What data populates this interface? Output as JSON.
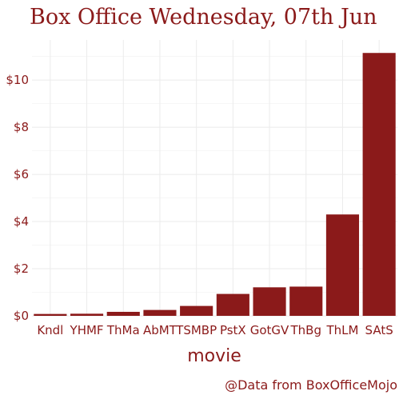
{
  "colors": {
    "bar": "#8b1a1a",
    "text": "#8b1a1a",
    "grid": "#ebebeb"
  },
  "chart_data": {
    "type": "bar",
    "title": "Box Office Wednesday, 07th Jun",
    "xlabel": "movie",
    "ylabel": "",
    "caption": "@Data from BoxOfficeMojo",
    "categories": [
      "Kndl",
      "YHMF",
      "ThMa",
      "AbMT",
      "TSMBP",
      "PstX",
      "GotGV",
      "ThBg",
      "ThLM",
      "SAtS"
    ],
    "values": [
      0.08,
      0.09,
      0.17,
      0.25,
      0.42,
      0.93,
      1.21,
      1.24,
      4.3,
      11.15
    ],
    "ylim": [
      0,
      11.7
    ],
    "yticks": [
      0,
      2,
      4,
      6,
      8,
      10
    ],
    "ytick_labels": [
      "$0",
      "$2",
      "$4",
      "$6",
      "$8",
      "$10"
    ],
    "grid": true
  }
}
